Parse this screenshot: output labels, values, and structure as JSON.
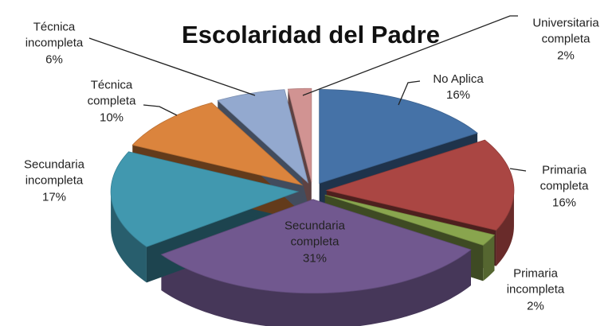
{
  "chart_data": {
    "type": "pie",
    "title": "Escolaridad del Padre",
    "categories": [
      "No Aplica",
      "Primaria completa",
      "Primaria incompleta",
      "Secundaria completa",
      "Secundaria incompleta",
      "Técnica completa",
      "Técnica incompleta",
      "Universitaria completa"
    ],
    "values": [
      16,
      16,
      2,
      31,
      17,
      10,
      6,
      2
    ],
    "value_labels": [
      "16%",
      "16%",
      "2%",
      "31%",
      "17%",
      "10%",
      "6%",
      "2%"
    ],
    "colors": [
      "#4572a7",
      "#aa4643",
      "#89a54e",
      "#71588f",
      "#4198af",
      "#db843d",
      "#93a9cf",
      "#d19392"
    ]
  }
}
